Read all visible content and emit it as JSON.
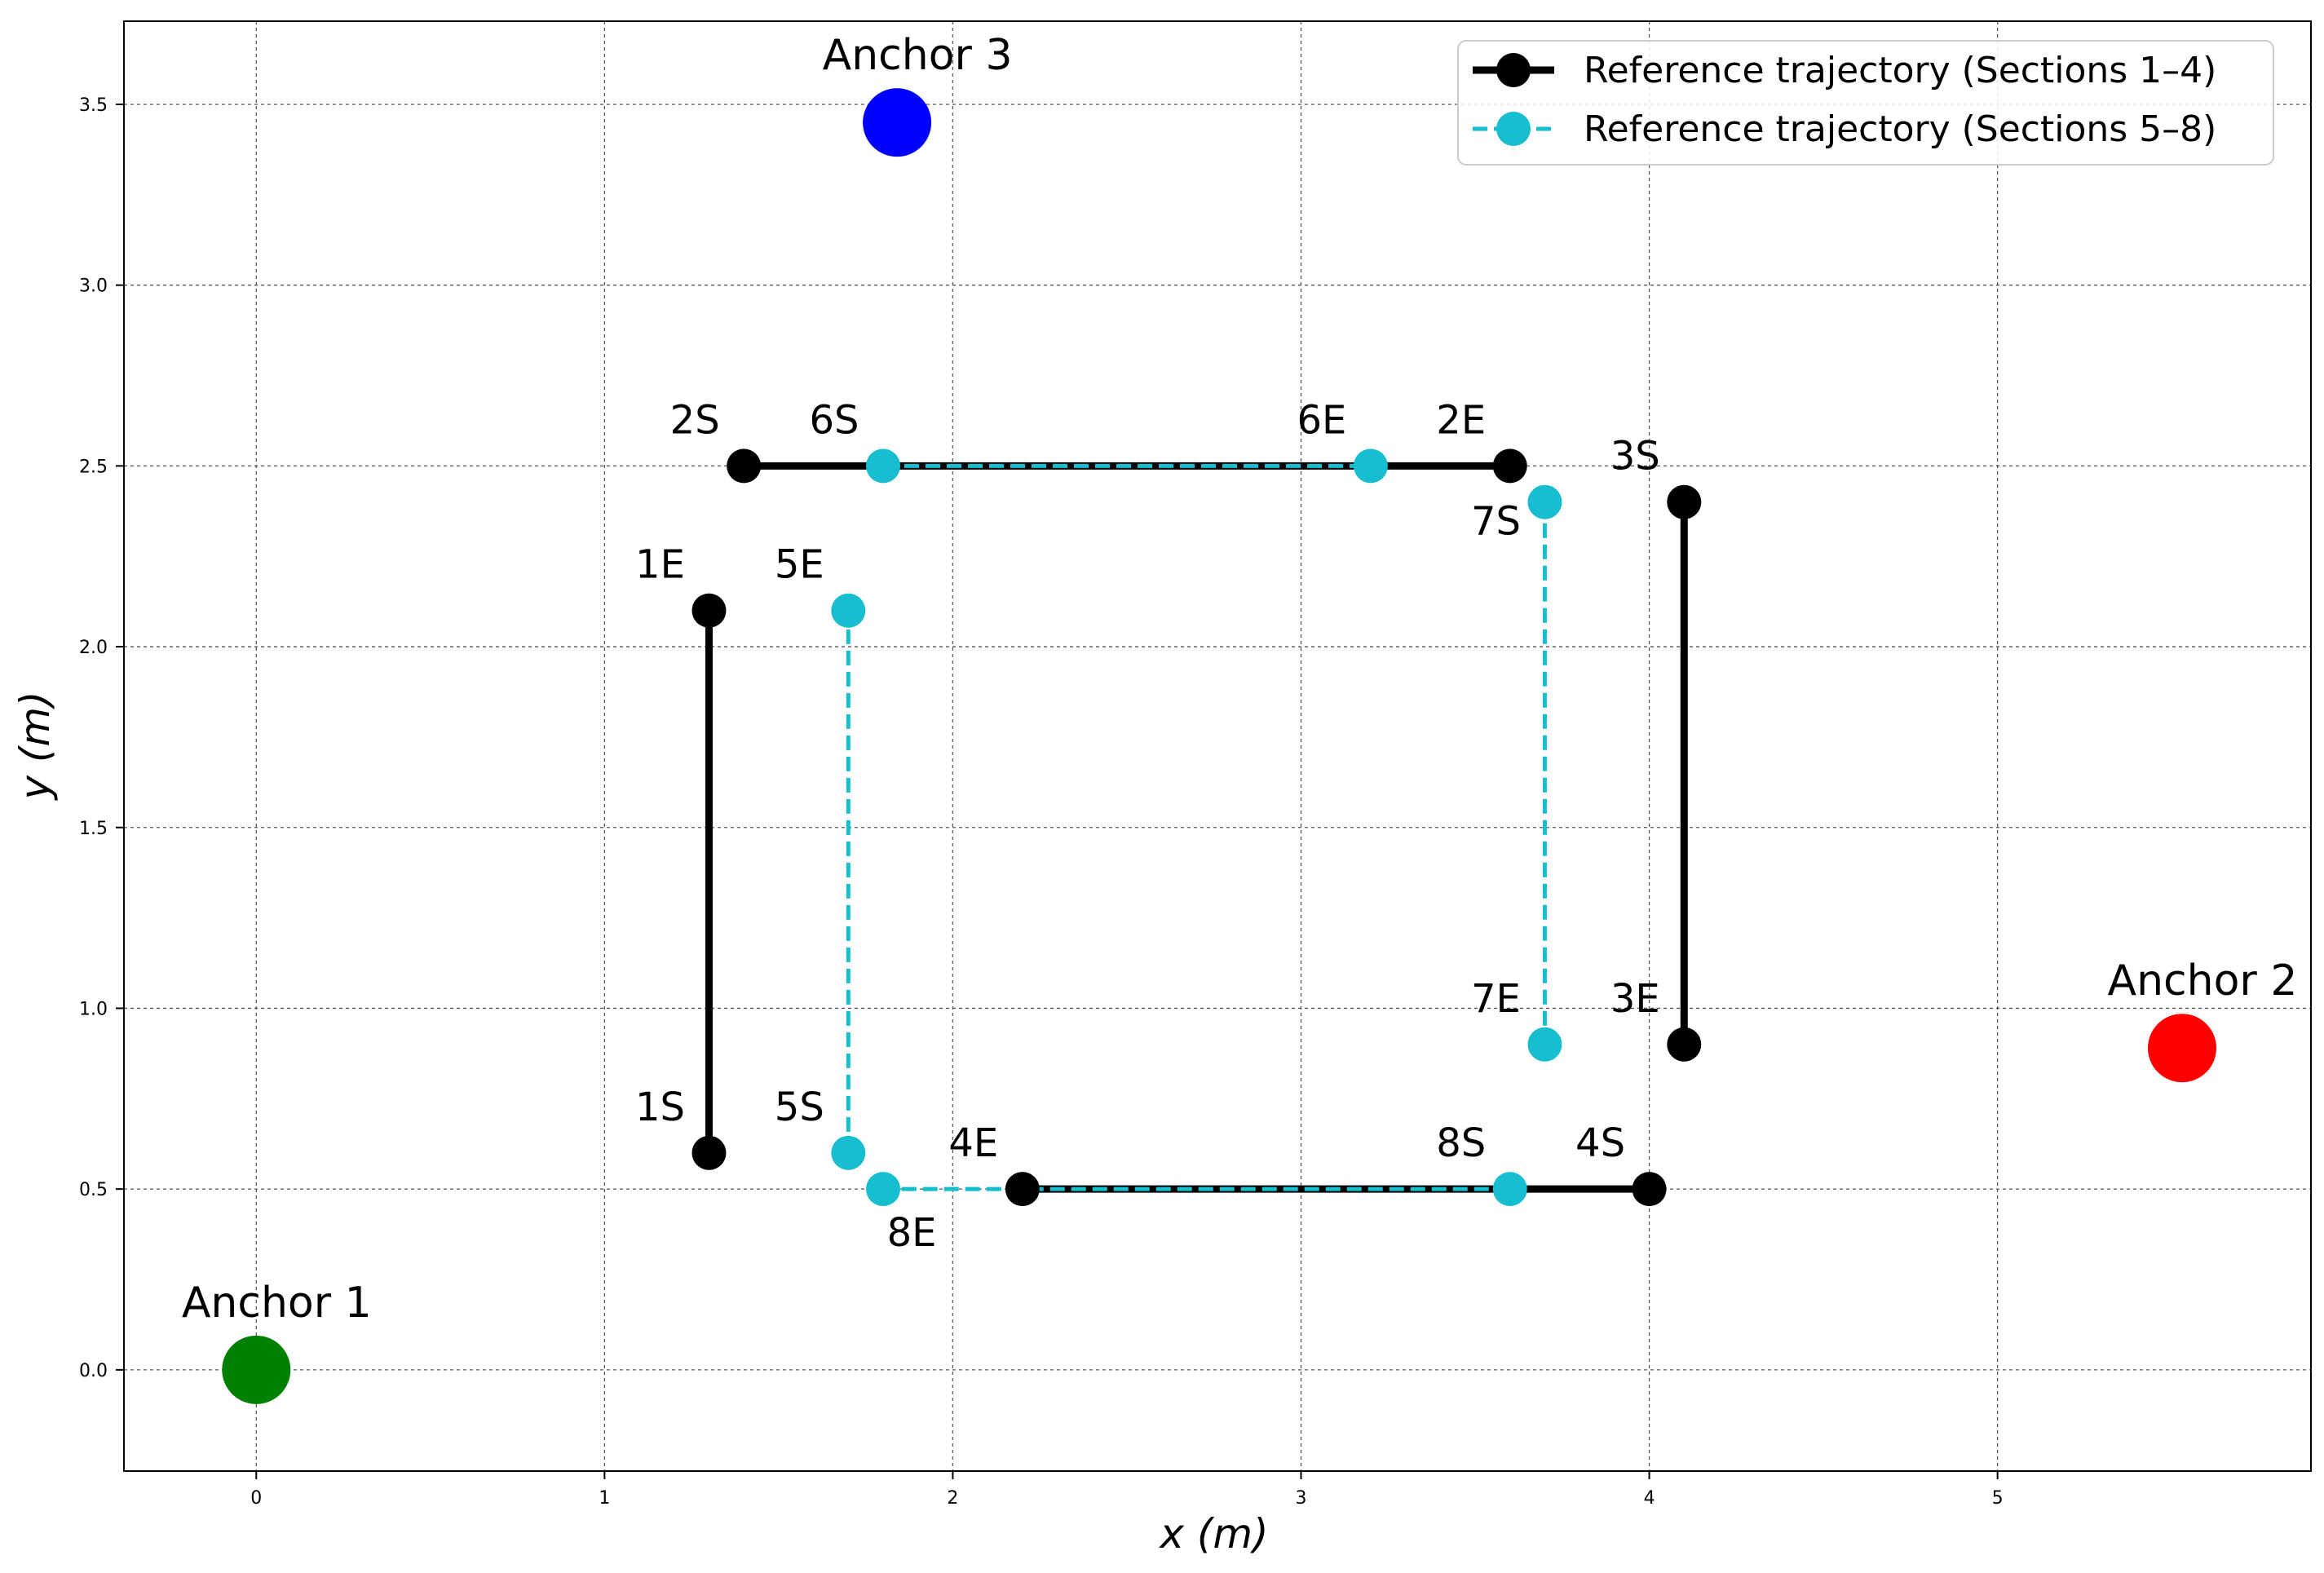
{
  "chart_data": {
    "type": "line",
    "xlabel": "x (m)",
    "ylabel": "y (m)",
    "xlim": [
      -0.38,
      5.9
    ],
    "ylim": [
      -0.28,
      3.73
    ],
    "xticks": [
      0,
      1,
      2,
      3,
      4,
      5
    ],
    "yticks": [
      0.0,
      0.5,
      1.0,
      1.5,
      2.0,
      2.5,
      3.0,
      3.5
    ],
    "xtick_labels": [
      "0",
      "1",
      "2",
      "3",
      "4",
      "5"
    ],
    "ytick_labels": [
      "0.0",
      "0.5",
      "1.0",
      "1.5",
      "2.0",
      "2.5",
      "3.0",
      "3.5"
    ],
    "grid": true,
    "legend_position": "top-right",
    "series": [
      {
        "name": "Reference trajectory (Sections 1–4)",
        "color": "#000000",
        "line_style": "solid",
        "sections": [
          {
            "points": [
              {
                "x": 1.3,
                "y": 0.6,
                "label": "1S"
              },
              {
                "x": 1.3,
                "y": 2.1,
                "label": "1E"
              }
            ]
          },
          {
            "points": [
              {
                "x": 1.4,
                "y": 2.5,
                "label": "2S"
              },
              {
                "x": 3.6,
                "y": 2.5,
                "label": "2E"
              }
            ]
          },
          {
            "points": [
              {
                "x": 4.1,
                "y": 2.4,
                "label": "3S"
              },
              {
                "x": 4.1,
                "y": 0.9,
                "label": "3E"
              }
            ]
          },
          {
            "points": [
              {
                "x": 4.0,
                "y": 0.5,
                "label": "4S"
              },
              {
                "x": 2.2,
                "y": 0.5,
                "label": "4E"
              }
            ]
          }
        ]
      },
      {
        "name": "Reference trajectory (Sections 5–8)",
        "color": "#17BECF",
        "line_style": "dashed",
        "sections": [
          {
            "points": [
              {
                "x": 1.7,
                "y": 0.6,
                "label": "5S"
              },
              {
                "x": 1.7,
                "y": 2.1,
                "label": "5E"
              }
            ]
          },
          {
            "points": [
              {
                "x": 1.8,
                "y": 2.5,
                "label": "6S"
              },
              {
                "x": 3.2,
                "y": 2.5,
                "label": "6E"
              }
            ]
          },
          {
            "points": [
              {
                "x": 3.7,
                "y": 2.4,
                "label": "7S"
              },
              {
                "x": 3.7,
                "y": 0.9,
                "label": "7E"
              }
            ]
          },
          {
            "points": [
              {
                "x": 3.6,
                "y": 0.5,
                "label": "8S"
              },
              {
                "x": 1.8,
                "y": 0.5,
                "label": "8E"
              }
            ]
          }
        ]
      }
    ],
    "anchors": [
      {
        "label": "Anchor 1",
        "x": 0.0,
        "y": 0.0,
        "color": "#008000"
      },
      {
        "label": "Anchor 2",
        "x": 5.53,
        "y": 0.89,
        "color": "#FF0000"
      },
      {
        "label": "Anchor 3",
        "x": 1.84,
        "y": 3.45,
        "color": "#0000FF"
      }
    ]
  }
}
